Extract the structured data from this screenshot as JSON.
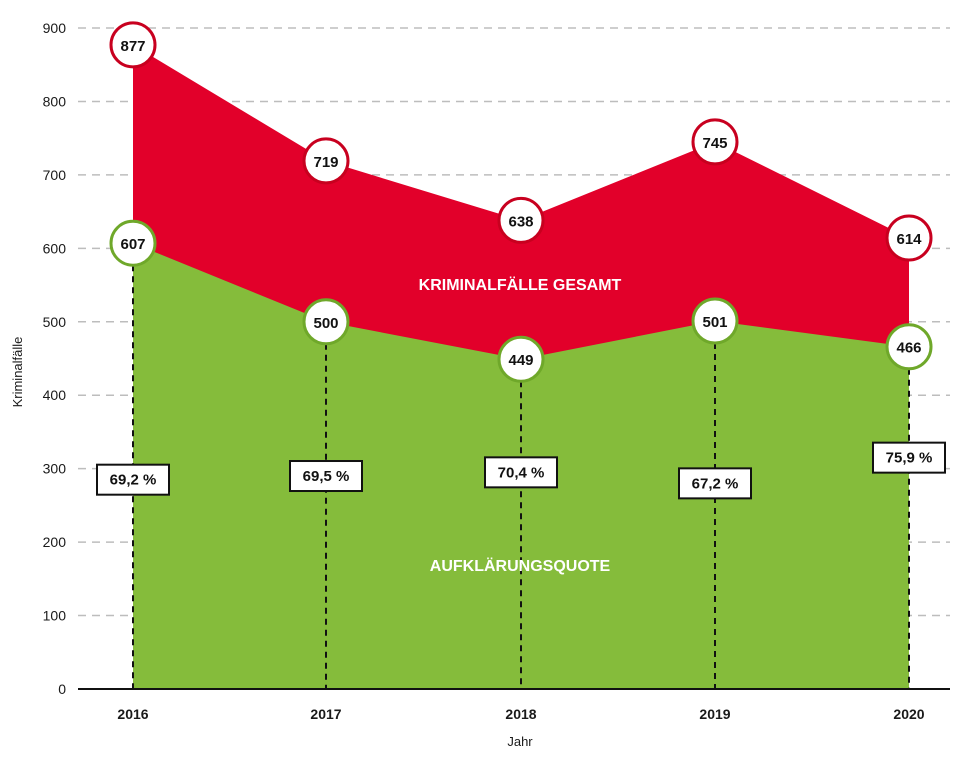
{
  "chart_data": {
    "type": "area",
    "x": [
      "2016",
      "2017",
      "2018",
      "2019",
      "2020"
    ],
    "xlabel": "Jahr",
    "ylabel": "Kriminalfälle",
    "ylim": [
      0,
      900
    ],
    "yticks": [
      0,
      100,
      200,
      300,
      400,
      500,
      600,
      700,
      800,
      900
    ],
    "grid": true,
    "series": [
      {
        "name": "KRIMINALFÄLLE GESAMT",
        "values": [
          877,
          719,
          638,
          745,
          614
        ],
        "color": "#e2002a"
      },
      {
        "name": "AUFKLÄRUNGSQUOTE",
        "values": [
          607,
          500,
          449,
          501,
          466
        ],
        "color": "#85bc3b"
      }
    ],
    "percent_labels": [
      "69,2 %",
      "69,5 %",
      "70,4 %",
      "67,2 %",
      "75,9 %"
    ],
    "percent_label_y": [
      285,
      290,
      295,
      280,
      315
    ]
  }
}
